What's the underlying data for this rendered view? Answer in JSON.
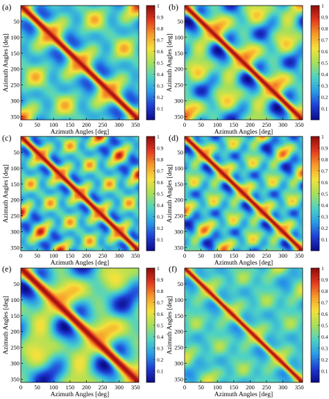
{
  "figure": {
    "colormap": [
      "#0b0b8a",
      "#1f3fd6",
      "#2a9de8",
      "#4fd3c4",
      "#a8e05a",
      "#f5e13b",
      "#f79a2a",
      "#e3371e",
      "#8e0c0c"
    ],
    "colorbar_ticks": [
      "0.1",
      "0.2",
      "0.3",
      "0.4",
      "0.5",
      "0.6",
      "0.7",
      "0.8",
      "0.9",
      "1"
    ]
  },
  "chart_data": [
    {
      "type": "heatmap",
      "panel_label": "(a)",
      "xlabel": "Azimuth Angles [deg]",
      "ylabel": "Azimuth Angles [deg]",
      "x_ticks": [
        0,
        50,
        100,
        150,
        200,
        250,
        300,
        350
      ],
      "y_ticks": [
        50,
        100,
        150,
        200,
        250,
        300,
        350
      ],
      "xlim": [
        0,
        360
      ],
      "ylim": [
        0,
        360
      ],
      "value_range": [
        0,
        1
      ],
      "colorbar_ticks": [
        0.1,
        0.2,
        0.3,
        0.4,
        0.5,
        0.6,
        0.7,
        0.8,
        0.9,
        1
      ],
      "pattern": {
        "modes": 2,
        "phase": 0,
        "base": 0.4,
        "off_diagonal_amp": 0.45,
        "diag_width": 12
      }
    },
    {
      "type": "heatmap",
      "panel_label": "(b)",
      "xlabel": "Azimuth Angles [deg]",
      "ylabel": "Azimuth Angles [deg]",
      "x_ticks": [
        0,
        50,
        100,
        150,
        200,
        250,
        300,
        350
      ],
      "y_ticks": [
        50,
        100,
        150,
        200,
        250,
        300,
        350
      ],
      "xlim": [
        0,
        360
      ],
      "ylim": [
        0,
        360
      ],
      "value_range": [
        0,
        1
      ],
      "colorbar_ticks": [
        0.1,
        0.2,
        0.3,
        0.4,
        0.5,
        0.6,
        0.7,
        0.8,
        0.9,
        1
      ],
      "pattern": {
        "modes": 2,
        "phase": 45,
        "base": 0.4,
        "off_diagonal_amp": 0.5,
        "diag_width": 11
      }
    },
    {
      "type": "heatmap",
      "panel_label": "(c)",
      "xlabel": "Azimuth Angles [deg]",
      "ylabel": "Azimuth Angles [deg]",
      "x_ticks": [
        0,
        50,
        100,
        150,
        200,
        250,
        300,
        350
      ],
      "y_ticks": [
        50,
        100,
        150,
        200,
        250,
        300,
        350
      ],
      "xlim": [
        0,
        360
      ],
      "ylim": [
        0,
        360
      ],
      "value_range": [
        0,
        1
      ],
      "colorbar_ticks": [
        0.1,
        0.2,
        0.3,
        0.4,
        0.5,
        0.6,
        0.7,
        0.8,
        0.9,
        1
      ],
      "pattern": {
        "modes": 3,
        "phase": 0,
        "base": 0.4,
        "off_diagonal_amp": 0.5,
        "diag_width": 10
      }
    },
    {
      "type": "heatmap",
      "panel_label": "(d)",
      "xlabel": "Azimuth Angles [deg]",
      "ylabel": "Azimuth Angles [deg]",
      "x_ticks": [
        0,
        50,
        100,
        150,
        200,
        250,
        300,
        350
      ],
      "y_ticks": [
        50,
        100,
        150,
        200,
        250,
        300,
        350
      ],
      "xlim": [
        0,
        360
      ],
      "ylim": [
        0,
        360
      ],
      "value_range": [
        0,
        1
      ],
      "colorbar_ticks": [
        0.1,
        0.2,
        0.3,
        0.4,
        0.5,
        0.6,
        0.7,
        0.8,
        0.9,
        1
      ],
      "pattern": {
        "modes": 3,
        "phase": 30,
        "base": 0.38,
        "off_diagonal_amp": 0.45,
        "diag_width": 10
      }
    },
    {
      "type": "heatmap",
      "panel_label": "(e)",
      "xlabel": "Azimuth Angles [deg]",
      "ylabel": "Azimuth Angles [deg]",
      "x_ticks": [
        0,
        50,
        100,
        150,
        200,
        250,
        300,
        350
      ],
      "y_ticks": [
        50,
        100,
        150,
        200,
        250,
        300,
        350
      ],
      "xlim": [
        0,
        360
      ],
      "ylim": [
        0,
        360
      ],
      "value_range": [
        0,
        1
      ],
      "colorbar_ticks": [
        0.1,
        0.2,
        0.3,
        0.4,
        0.5,
        0.6,
        0.7,
        0.8,
        0.9,
        1
      ],
      "pattern": {
        "modes": 1.5,
        "phase": 60,
        "base": 0.4,
        "off_diagonal_amp": 0.5,
        "diag_width": 16
      }
    },
    {
      "type": "heatmap",
      "panel_label": "(f)",
      "xlabel": "Azimuth Angles [deg]",
      "ylabel": "Azimuth Angles [deg]",
      "x_ticks": [
        0,
        50,
        100,
        150,
        200,
        250,
        300,
        350
      ],
      "y_ticks": [
        50,
        100,
        150,
        200,
        250,
        300,
        350
      ],
      "xlim": [
        0,
        360
      ],
      "ylim": [
        0,
        360
      ],
      "value_range": [
        0,
        1
      ],
      "colorbar_ticks": [
        0.1,
        0.2,
        0.3,
        0.4,
        0.5,
        0.6,
        0.7,
        0.8,
        0.9,
        1
      ],
      "pattern": {
        "modes": 2.5,
        "phase": 20,
        "base": 0.38,
        "off_diagonal_amp": 0.22,
        "diag_width": 9
      }
    }
  ]
}
